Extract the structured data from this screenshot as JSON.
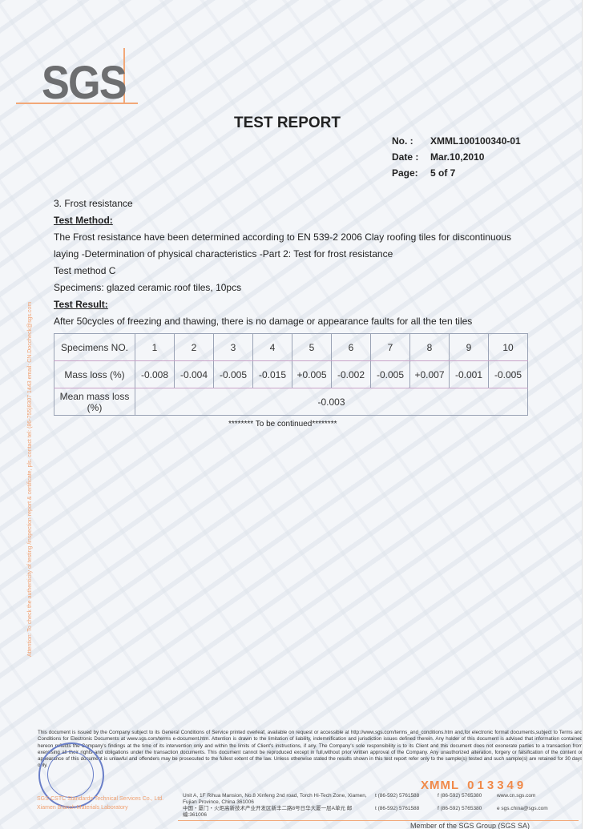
{
  "logo": "SGS",
  "title": "TEST REPORT",
  "meta": [
    {
      "k": "No. :",
      "v": "XMML100100340-01"
    },
    {
      "k": "Date :",
      "v": "Mar.10,2010"
    },
    {
      "k": "Page:",
      "v": "5 of 7"
    }
  ],
  "side_notice": "Attention: To check the authenticity of testing /inspection report & certificate, pls. contact tel: (86-755)8307 1443 email: CN.Doccheck@sgs.com",
  "section": "3. Frost resistance",
  "method_heading": "Test Method:",
  "method_text": "The Frost resistance have been determined according to EN 539-2 2006 Clay roofing tiles for discontinuous laying -Determination of physical characteristics -Part 2: Test for frost resistance",
  "method_c": "Test method C",
  "specimens": "Specimens: glazed ceramic roof tiles, 10pcs",
  "result_heading": "Test Result:",
  "result_text": "After 50cycles of freezing and thawing, there is no damage or appearance faults for all the ten tiles",
  "table": {
    "header_label": "Specimens NO.",
    "numbers": [
      "1",
      "2",
      "3",
      "4",
      "5",
      "6",
      "7",
      "8",
      "9",
      "10"
    ],
    "row_label": "Mass loss (%)",
    "values": [
      "-0.008",
      "-0.004",
      "-0.005",
      "-0.015",
      "+0.005",
      "-0.002",
      "-0.005",
      "+0.007",
      "-0.001",
      "-0.005"
    ],
    "mean_label": "Mean mass loss (%)",
    "mean_value": "-0.003"
  },
  "continued": "******** To be continued********",
  "disclaimer": "This document is issued by the Company subject to its General Conditions of Service printed overleaf, available on request or accessible at http://www.sgs.com/terms_and_conditions.htm and,for electronic format documents,subject to Terms and Conditions for Electronic Documents at www.sgs.com/terms e-document.htm. Attention is drawn to the limitation of liability, indemnification and jurisdiction issues defined therein. Any holder of this document is advised that information contained hereon reflects the Company's findings at the time of its intervention only and within the limits of Client's instructions, if any. The Company's sole responsibility is to its Client and this document does not exonerate parties to a transaction from exercising all their rights and obligations under the transaction documents. This document cannot be reproduced except in full,without prior written approval of the Company. Any unauthorized alteration, forgery or falsification of the content or appearance of this document is unlawful and offenders may be prosecuted to the fullest extent of the law. Unless otherwise stated the results shown in this test report refer only to the sample(s) tested and such sample(s) are retained for 30 days only.",
  "stamp": "SGS",
  "serial_prefix": "XMML",
  "serial_number": "013349",
  "company": [
    "SGS-CSTC Standards Technical Services Co., Ltd.",
    "Xiamen Branch Materials Laboratory"
  ],
  "address": [
    {
      "addr": "Unit A, 1F Rihua Mansion, No.8 Xinfeng 2nd road, Torch Hi-Tech Zone, Xiamen, Fujian Province, China 361006",
      "t": "t (86-592) 5761588",
      "f": "f (86-592) 5765380",
      "w": "www.cn.sgs.com"
    },
    {
      "addr": "中国・厦门・火炬高新技术产业开发区新丰二路8号日华大厦一层A单元  邮编:361006",
      "t": "t (86-592) 5761588",
      "f": "f (86-592) 5765380",
      "w": "e sgs.china@sgs.com"
    }
  ],
  "member": "Member of the SGS Group (SGS SA)"
}
